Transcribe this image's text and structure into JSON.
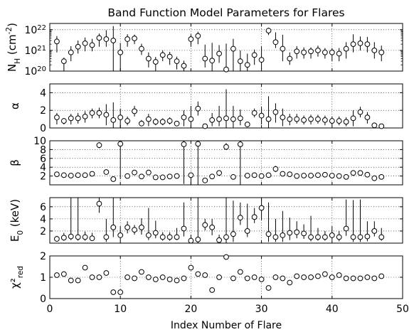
{
  "figure": {
    "title": "Band Function Model Parameters for Flares",
    "xlabel": "Index Number of Flare",
    "xlim": [
      0,
      50
    ],
    "xticks": [
      0,
      10,
      20,
      30,
      40,
      50
    ]
  },
  "chart_data": [
    {
      "type": "scatter",
      "panel": "NH",
      "ylabel": "N_H (cm^-2)",
      "yscale": "log",
      "ylim": [
        100000000000000000000,
        2e+22
      ],
      "yticks": [
        {
          "value": 100000000000000000000,
          "label": "10^20"
        },
        {
          "value": 1e+21,
          "label": "10^21"
        },
        {
          "value": 1e+22,
          "label": "10^22"
        }
      ],
      "grid": true,
      "x": [
        1,
        2,
        3,
        4,
        5,
        6,
        7,
        8,
        9,
        10,
        11,
        12,
        13,
        14,
        15,
        16,
        17,
        18,
        19,
        20,
        21,
        22,
        23,
        24,
        25,
        26,
        27,
        28,
        29,
        30,
        31,
        32,
        33,
        34,
        35,
        36,
        37,
        38,
        39,
        40,
        41,
        42,
        43,
        44,
        45,
        46,
        47
      ],
      "y": [
        2.7e+21,
        3e+20,
        8e+20,
        1.5e+21,
        2.2e+21,
        1.8e+21,
        4e+21,
        3.5e+21,
        3e+21,
        8e+20,
        3.5e+21,
        3.8e+21,
        1.2e+21,
        4e+20,
        2.8e+20,
        6e+20,
        5e+20,
        3e+20,
        1.8e+20,
        3.5e+21,
        5e+21,
        4e+20,
        3.2e+20,
        7e+20,
        1.2e+20,
        1.2e+21,
        3e+20,
        2e+20,
        6e+20,
        3.5e+20,
        9e+21,
        2.5e+21,
        1.2e+21,
        4e+20,
        9e+20,
        8e+20,
        9e+20,
        1e+21,
        8e+20,
        8e+20,
        7e+20,
        1.2e+21,
        2e+21,
        2.2e+21,
        2e+21,
        1e+21,
        8e+20
      ],
      "err_lo": [
        1.9e+21,
        2.2e+20,
        5e+20,
        8e+20,
        1.3e+21,
        9e+20,
        2.5e+21,
        2e+21,
        2.99e+21,
        7.9e+20,
        2e+21,
        1.8e+21,
        6e+20,
        2.5e+20,
        1.8e+20,
        3e+20,
        3e+20,
        1.8e+20,
        1.5e+20,
        2e+21,
        3e+21,
        2.5e+20,
        2.2e+20,
        4.5e+20,
        1.19e+20,
        1.19e+21,
        2e+20,
        1.3e+20,
        4e+20,
        2.2e+20,
        3.5e+21,
        1.2e+21,
        9e+20,
        2e+20,
        5e+20,
        4e+20,
        5e+20,
        5e+20,
        4e+20,
        5e+20,
        4e+20,
        8e+20,
        1.2e+21,
        1.2e+21,
        1.2e+21,
        6e+20,
        5e+20
      ],
      "err_hi": [
        2.2e+21,
        1.5e+20,
        8e+20,
        1.5e+21,
        2e+21,
        1.8e+21,
        2.5e+21,
        6e+21,
        1.2e+22,
        1.5e+21,
        2.5e+21,
        2e+21,
        9e+20,
        4e+20,
        2e+20,
        4e+20,
        3.5e+20,
        2e+20,
        1.4e+20,
        2.5e+21,
        3e+21,
        1.5e+21,
        2e+21,
        1.1e+21,
        2e+21,
        2.4e+21,
        7e+20,
        5e+20,
        5e+20,
        1.2e+21,
        3.5e+21,
        5e+21,
        4.5e+21,
        4e+20,
        7e+20,
        6e+20,
        5e+20,
        7e+20,
        5e+20,
        5e+20,
        6e+20,
        1.3e+21,
        4e+21,
        2.5e+21,
        2.5e+21,
        1.5e+21,
        9e+20
      ]
    },
    {
      "type": "scatter",
      "panel": "alpha",
      "ylabel": "α",
      "ylim": [
        0,
        5
      ],
      "yticks": [
        {
          "value": 0,
          "label": "0"
        },
        {
          "value": 2,
          "label": "2"
        },
        {
          "value": 4,
          "label": "4"
        }
      ],
      "grid": true,
      "x": [
        1,
        2,
        3,
        4,
        5,
        6,
        7,
        8,
        9,
        10,
        11,
        12,
        13,
        14,
        15,
        16,
        17,
        18,
        19,
        20,
        21,
        22,
        23,
        24,
        25,
        26,
        27,
        28,
        29,
        30,
        31,
        32,
        33,
        34,
        35,
        36,
        37,
        38,
        39,
        40,
        41,
        42,
        43,
        44,
        45,
        46,
        47
      ],
      "y": [
        1.2,
        0.8,
        1.1,
        1.1,
        1.3,
        1.7,
        1.7,
        1.5,
        0.9,
        1.2,
        0.8,
        1.9,
        0.5,
        1.0,
        0.7,
        0.7,
        0.8,
        0.5,
        1.2,
        1.0,
        2.2,
        0.2,
        0.9,
        1.0,
        1.1,
        1.0,
        1.1,
        0.4,
        1.7,
        1.4,
        1.0,
        1.8,
        1.2,
        1.0,
        1.0,
        0.9,
        1.0,
        1.0,
        0.9,
        0.8,
        0.8,
        0.7,
        1.1,
        1.8,
        1.2,
        0.3,
        0.2
      ],
      "err_lo": [
        0.8,
        0.4,
        0.7,
        0.6,
        0.7,
        0.6,
        0.6,
        1.2,
        0.9,
        1.2,
        0.5,
        0.6,
        0.3,
        0.8,
        0.4,
        0.4,
        0.4,
        0.3,
        1.0,
        1.0,
        0.8,
        0.2,
        0.7,
        0.8,
        1.1,
        1.0,
        0.8,
        0.3,
        0.5,
        1.0,
        1.0,
        1.2,
        1.0,
        0.7,
        0.5,
        0.5,
        0.6,
        0.5,
        0.6,
        0.5,
        0.5,
        0.5,
        0.9,
        0.6,
        0.7,
        0.3,
        0.2
      ],
      "err_hi": [
        0.5,
        0.3,
        0.5,
        0.6,
        0.6,
        0.5,
        0.6,
        1.2,
        2.0,
        1.0,
        0.5,
        0.6,
        0.4,
        0.6,
        0.4,
        0.4,
        0.4,
        0.3,
        0.8,
        1.5,
        0.8,
        0.3,
        0.8,
        1.5,
        3.3,
        1.5,
        1.0,
        0.3,
        0.5,
        1.0,
        2.6,
        1.0,
        1.0,
        0.6,
        0.6,
        0.5,
        0.5,
        0.5,
        0.5,
        0.5,
        0.5,
        0.5,
        0.9,
        0.6,
        0.6,
        0.3,
        0.2
      ]
    },
    {
      "type": "scatter",
      "panel": "beta",
      "ylabel": "β",
      "ylim": [
        0,
        10
      ],
      "yticks": [
        {
          "value": 2,
          "label": "2"
        },
        {
          "value": 4,
          "label": "4"
        },
        {
          "value": 6,
          "label": "6"
        },
        {
          "value": 8,
          "label": "8"
        },
        {
          "value": 10,
          "label": "10"
        }
      ],
      "grid": true,
      "x": [
        1,
        2,
        3,
        4,
        5,
        6,
        7,
        8,
        9,
        10,
        11,
        12,
        13,
        14,
        15,
        16,
        17,
        18,
        19,
        20,
        21,
        22,
        23,
        24,
        25,
        26,
        27,
        28,
        29,
        30,
        31,
        32,
        33,
        34,
        35,
        36,
        37,
        38,
        39,
        40,
        41,
        42,
        43,
        44,
        45,
        46,
        47
      ],
      "y": [
        2.4,
        2.2,
        2.1,
        2.2,
        2.2,
        2.5,
        9.0,
        2.9,
        1.3,
        9.3,
        2.0,
        2.8,
        1.9,
        2.8,
        1.7,
        1.7,
        1.9,
        2.0,
        9.2,
        2.2,
        9.3,
        1.0,
        1.9,
        2.7,
        8.6,
        1.8,
        9.2,
        2.1,
        2.2,
        2.0,
        2.2,
        3.6,
        2.5,
        2.4,
        2.0,
        2.1,
        2.1,
        2.2,
        2.3,
        2.1,
        2.0,
        1.8,
        2.7,
        2.7,
        2.3,
        1.5,
        1.8
      ],
      "err_lo": [
        0.3,
        0.3,
        0.3,
        0.3,
        0.3,
        0.3,
        0.7,
        0.5,
        0.5,
        8.0,
        0.3,
        0.4,
        0.3,
        0.6,
        0.3,
        0.3,
        0.3,
        0.3,
        9.0,
        2.2,
        9.3,
        0.3,
        0.3,
        0.5,
        0.7,
        0.3,
        9.2,
        0.3,
        0.3,
        0.3,
        0.3,
        0.7,
        0.5,
        0.4,
        0.3,
        0.3,
        0.3,
        0.3,
        0.3,
        0.3,
        0.3,
        0.3,
        0.4,
        0.4,
        0.3,
        0.3,
        0.3
      ],
      "err_hi": [
        0.3,
        0.3,
        0.3,
        0.3,
        0.3,
        0.3,
        0.7,
        0.5,
        0.5,
        0.7,
        0.3,
        0.4,
        0.3,
        0.6,
        0.3,
        0.3,
        0.3,
        0.3,
        0.8,
        0.5,
        0.7,
        0.3,
        0.3,
        0.5,
        0.9,
        0.3,
        0.8,
        0.3,
        0.3,
        0.3,
        0.3,
        0.7,
        0.5,
        0.4,
        0.3,
        0.3,
        0.3,
        0.3,
        0.3,
        0.3,
        0.3,
        0.3,
        0.4,
        0.4,
        0.3,
        0.3,
        0.3
      ]
    },
    {
      "type": "scatter",
      "panel": "E0",
      "ylabel": "E_0 (keV)",
      "ylim": [
        0,
        7.5
      ],
      "yticks": [
        {
          "value": 2,
          "label": "2"
        },
        {
          "value": 4,
          "label": "4"
        },
        {
          "value": 6,
          "label": "6"
        }
      ],
      "grid": true,
      "x": [
        1,
        2,
        3,
        4,
        5,
        6,
        7,
        8,
        9,
        10,
        11,
        12,
        13,
        14,
        15,
        16,
        17,
        18,
        19,
        20,
        21,
        22,
        23,
        24,
        25,
        26,
        27,
        28,
        29,
        30,
        31,
        32,
        33,
        34,
        35,
        36,
        37,
        38,
        39,
        40,
        41,
        42,
        43,
        44,
        45,
        46,
        47
      ],
      "y": [
        0.7,
        0.9,
        1.1,
        1.0,
        1.0,
        0.8,
        6.5,
        1.0,
        2.6,
        1.3,
        2.6,
        2.2,
        2.6,
        1.3,
        1.7,
        1.0,
        1.0,
        1.0,
        2.4,
        0.4,
        0.6,
        3.0,
        2.6,
        0.5,
        1.0,
        1.5,
        4.2,
        2.0,
        4.3,
        5.8,
        1.5,
        1.0,
        1.3,
        1.7,
        1.8,
        1.6,
        1.0,
        1.0,
        1.0,
        1.3,
        1.0,
        2.4,
        1.0,
        1.0,
        1.1,
        2.0,
        1.0
      ],
      "err_lo": [
        0.4,
        0.5,
        0.6,
        0.6,
        0.6,
        0.4,
        1.5,
        0.8,
        1.6,
        0.9,
        1.0,
        0.8,
        1.2,
        0.8,
        0.9,
        0.6,
        0.6,
        0.5,
        1.3,
        0.4,
        0.6,
        0.9,
        1.3,
        0.5,
        1.0,
        1.3,
        1.2,
        1.0,
        1.0,
        2.0,
        1.3,
        0.8,
        1.1,
        1.2,
        1.0,
        0.9,
        0.7,
        0.6,
        0.6,
        0.8,
        0.7,
        1.2,
        0.8,
        0.8,
        0.8,
        0.9,
        0.6
      ],
      "err_hi": [
        0.5,
        0.8,
        6.4,
        6.5,
        0.9,
        0.9,
        1.0,
        3.0,
        4.9,
        1.5,
        1.0,
        0.8,
        1.5,
        4.5,
        2.0,
        0.8,
        0.8,
        1.5,
        4.3,
        1.0,
        7.0,
        1.0,
        1.4,
        0.9,
        6.5,
        5.5,
        2.5,
        4.5,
        1.5,
        1.5,
        5.2,
        3.0,
        4.0,
        2.5,
        1.8,
        1.5,
        3.5,
        1.5,
        1.0,
        1.5,
        1.0,
        4.8,
        6.1,
        6.2,
        2.5,
        1.6,
        1.5
      ]
    },
    {
      "type": "scatter",
      "panel": "chi2red",
      "ylabel": "χ²_red",
      "ylim": [
        0,
        2
      ],
      "yticks": [
        {
          "value": 0,
          "label": "0"
        },
        {
          "value": 1,
          "label": "1"
        },
        {
          "value": 2,
          "label": "2"
        }
      ],
      "grid": true,
      "x": [
        1,
        2,
        3,
        4,
        5,
        6,
        7,
        8,
        9,
        10,
        11,
        12,
        13,
        14,
        15,
        16,
        17,
        18,
        19,
        20,
        21,
        22,
        23,
        24,
        25,
        26,
        27,
        28,
        29,
        30,
        31,
        32,
        33,
        34,
        35,
        36,
        37,
        38,
        39,
        40,
        41,
        42,
        43,
        44,
        45,
        46,
        47
      ],
      "y": [
        1.1,
        1.15,
        0.85,
        0.85,
        1.45,
        1.0,
        1.0,
        1.2,
        0.3,
        0.3,
        1.0,
        0.95,
        1.25,
        1.0,
        0.9,
        1.0,
        0.9,
        0.85,
        0.95,
        1.45,
        1.15,
        1.1,
        0.4,
        1.0,
        1.95,
        0.95,
        1.25,
        0.95,
        1.0,
        0.9,
        0.5,
        1.0,
        0.95,
        0.75,
        1.05,
        1.0,
        1.0,
        1.05,
        1.15,
        1.0,
        1.1,
        0.95,
        0.95,
        0.95,
        1.0,
        0.95,
        1.05
      ]
    }
  ]
}
